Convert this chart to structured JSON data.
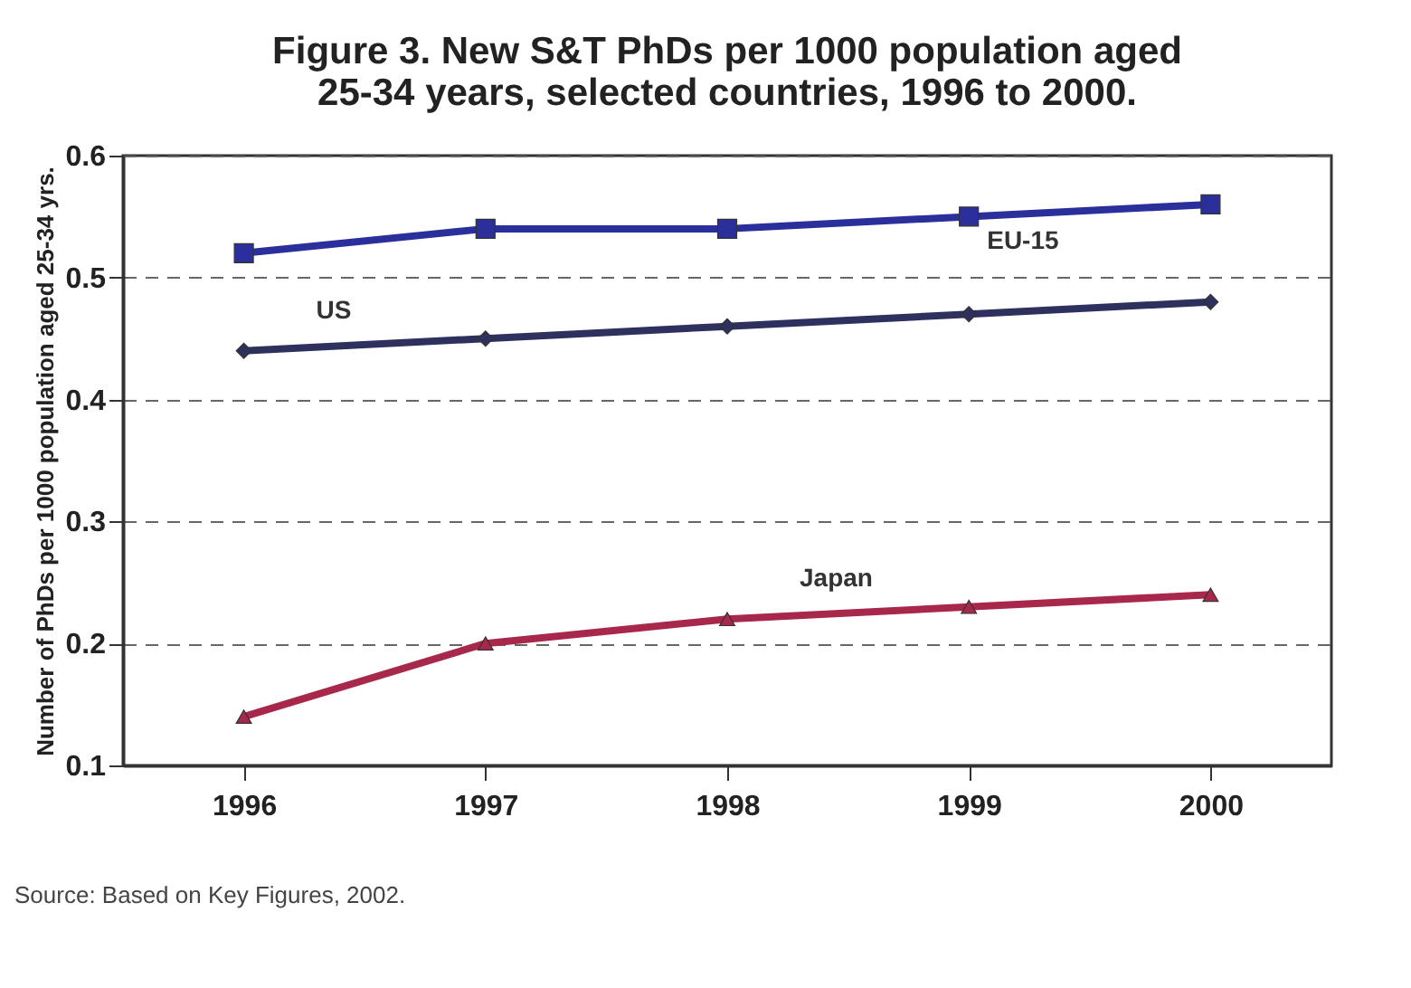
{
  "chart_data": {
    "type": "line",
    "title": [
      "Figure 3. New S&T PhDs per 1000 population aged",
      "25-34 years, selected countries, 1996 to 2000."
    ],
    "ylabel": "Number of PhDs per 1000 population aged 25-34 yrs.",
    "annotations": [
      "Source: Based on Key Figures, 2002."
    ],
    "categories": [
      "1996",
      "1997",
      "1998",
      "1999",
      "2000"
    ],
    "series": [
      {
        "name": "EU-15",
        "color": "#2b2f9c",
        "marker": "square",
        "values": [
          0.52,
          0.54,
          0.54,
          0.55,
          0.56
        ]
      },
      {
        "name": "US",
        "color": "#2e305e",
        "marker": "diamond",
        "values": [
          0.44,
          0.45,
          0.46,
          0.47,
          0.48
        ]
      },
      {
        "name": "Japan",
        "color": "#a8284c",
        "marker": "triangle",
        "values": [
          0.14,
          0.2,
          0.22,
          0.23,
          0.24
        ]
      }
    ],
    "ylim": [
      0.1,
      0.6
    ],
    "yticks": [
      0.1,
      0.2,
      0.3,
      0.4,
      0.5,
      0.6
    ],
    "grid": "y",
    "legend": false,
    "line_style": "solid"
  }
}
